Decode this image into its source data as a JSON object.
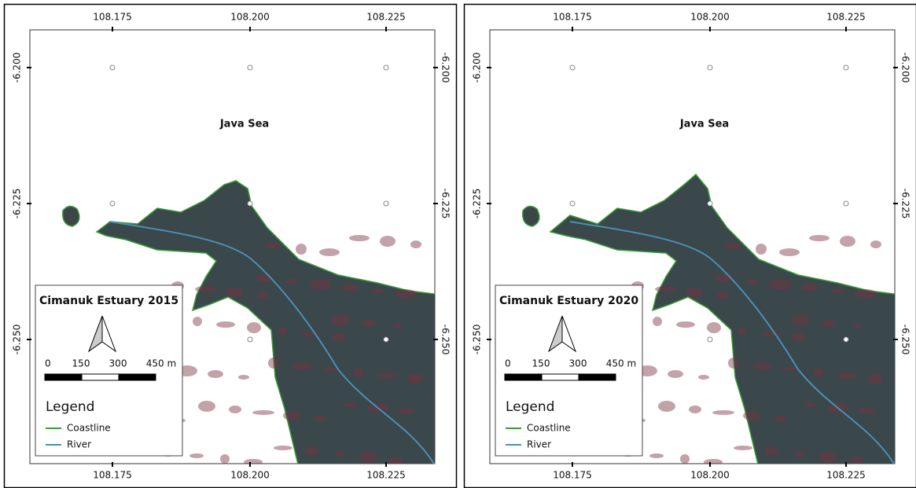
{
  "panels": [
    {
      "title": "Cimanuk Estuary 2015",
      "sea_label": "Java Sea",
      "x_ticks": [
        "108.175",
        "108.200",
        "108.225"
      ],
      "y_ticks": [
        "-6.200",
        "-6.225",
        "-6.250"
      ],
      "scale_labels": [
        "0",
        "150",
        "300",
        "450 m"
      ],
      "legend": {
        "title": "Legend",
        "items": [
          "Coastline",
          "River"
        ]
      }
    },
    {
      "title": "Cimanuk Estuary 2020",
      "sea_label": "Java Sea",
      "x_ticks": [
        "108.175",
        "108.200",
        "108.225"
      ],
      "y_ticks": [
        "-6.200",
        "-6.225",
        "-6.250"
      ],
      "scale_labels": [
        "0",
        "150",
        "300",
        "450 m"
      ],
      "legend": {
        "title": "Legend",
        "items": [
          "Coastline",
          "River"
        ]
      }
    }
  ]
}
